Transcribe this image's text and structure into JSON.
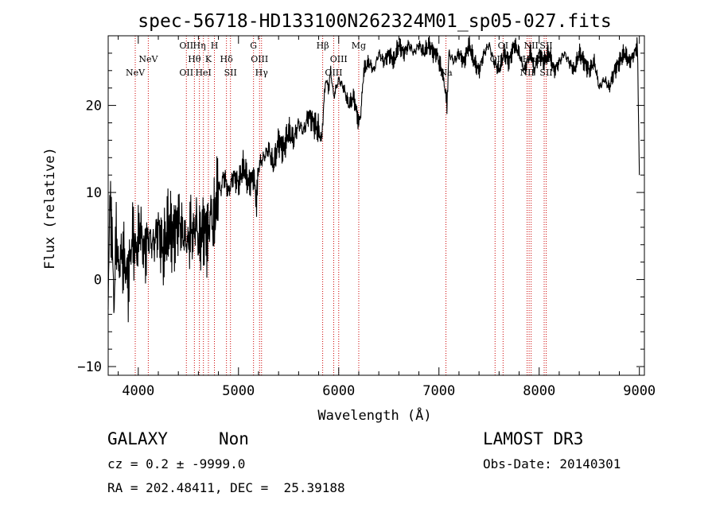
{
  "chart_data": {
    "type": "line",
    "title": "spec-56718-HD133100N262324M01_sp05-027.fits",
    "xlabel": "Wavelength (Å)",
    "ylabel": "Flux (relative)",
    "xlim": [
      3700,
      9050
    ],
    "ylim": [
      -11,
      28
    ],
    "x_ticks": [
      4000,
      5000,
      6000,
      7000,
      8000,
      9000
    ],
    "y_ticks": [
      -10,
      0,
      10,
      20
    ],
    "x_tick_labels": [
      "4000",
      "5000",
      "6000",
      "7000",
      "8000",
      "9000"
    ],
    "y_tick_labels": [
      "−10",
      "0",
      "10",
      "20"
    ],
    "series": [
      {
        "name": "flux",
        "x": [
          3700,
          3720,
          3740,
          3760,
          3780,
          3800,
          3830,
          3860,
          3900,
          3940,
          3980,
          4020,
          4060,
          4100,
          4150,
          4200,
          4250,
          4300,
          4350,
          4400,
          4450,
          4500,
          4520,
          4550,
          4580,
          4600,
          4650,
          4700,
          4720,
          4750,
          4780,
          4800,
          4820,
          4850,
          4880,
          4900,
          4950,
          5000,
          5050,
          5100,
          5150,
          5180,
          5200,
          5250,
          5300,
          5350,
          5400,
          5450,
          5500,
          5550,
          5600,
          5650,
          5700,
          5750,
          5800,
          5830,
          5850,
          5870,
          5900,
          5920,
          5950,
          6000,
          6050,
          6100,
          6150,
          6200,
          6220,
          6250,
          6300,
          6350,
          6400,
          6450,
          6500,
          6550,
          6600,
          6650,
          6700,
          6750,
          6800,
          6850,
          6900,
          6950,
          6980,
          7000,
          7030,
          7060,
          7080,
          7100,
          7150,
          7200,
          7250,
          7300,
          7350,
          7400,
          7450,
          7500,
          7550,
          7600,
          7650,
          7700,
          7750,
          7800,
          7850,
          7880,
          7920,
          7950,
          8000,
          8050,
          8100,
          8150,
          8200,
          8250,
          8300,
          8350,
          8400,
          8450,
          8500,
          8550,
          8600,
          8650,
          8700,
          8750,
          8800,
          8850,
          8900,
          8950,
          8980,
          9000
        ],
        "values": [
          -2,
          10,
          4,
          -3,
          6,
          1,
          3,
          2,
          0,
          5,
          3,
          6,
          3,
          5,
          4,
          6,
          3,
          6,
          5,
          7,
          5,
          4,
          6,
          5,
          7,
          4,
          6,
          5,
          8,
          6,
          9,
          11,
          10,
          12,
          11,
          10,
          12,
          11,
          13,
          11,
          12,
          9,
          13,
          14,
          15,
          13,
          16,
          15,
          17,
          16,
          18,
          17,
          19,
          18,
          17,
          16,
          20,
          23,
          22,
          24,
          21,
          23,
          22,
          20,
          21,
          18,
          19,
          24,
          25,
          24,
          26,
          25,
          26,
          25,
          27,
          26,
          27,
          26,
          27,
          26,
          27,
          26,
          26,
          25,
          24,
          22,
          20,
          26,
          25,
          26,
          25,
          27,
          25,
          24,
          26,
          27,
          25,
          24,
          26,
          25,
          27,
          26,
          24,
          25,
          26,
          24,
          26,
          25,
          26,
          24,
          25,
          26,
          25,
          24,
          26,
          25,
          24,
          25,
          22,
          23,
          22,
          24,
          25,
          26,
          25,
          26,
          27,
          12
        ]
      }
    ],
    "line_marks": [
      {
        "label": "NeV",
        "x": 3970
      },
      {
        "label": "NeV",
        "x": 4100
      },
      {
        "label": "OII",
        "x": 4480
      },
      {
        "label": "Hθ",
        "x": 4560
      },
      {
        "label": "Hη",
        "x": 4610
      },
      {
        "label": "HeI",
        "x": 4650
      },
      {
        "label": "K",
        "x": 4700
      },
      {
        "label": "H",
        "x": 4760
      },
      {
        "label": "Hδ",
        "x": 4880
      },
      {
        "label": "SII",
        "x": 4920
      },
      {
        "label": "G",
        "x": 5150
      },
      {
        "label": "OIII",
        "x": 5210
      },
      {
        "label": "Hγ",
        "x": 5230
      },
      {
        "label": "Hβ",
        "x": 5840
      },
      {
        "label": "OIII",
        "x": 5950
      },
      {
        "label": "OIII",
        "x": 6000
      },
      {
        "label": "Mg",
        "x": 6200
      },
      {
        "label": "Na",
        "x": 7070
      },
      {
        "label": "OI",
        "x": 7560
      },
      {
        "label": "OI",
        "x": 7640
      },
      {
        "label": "NII",
        "x": 7880
      },
      {
        "label": "Hα",
        "x": 7900
      },
      {
        "label": "NII",
        "x": 7920
      },
      {
        "label": "SII",
        "x": 8050
      },
      {
        "label": "SII",
        "x": 8070
      }
    ],
    "line_label_rows": [
      [
        {
          "t": "OII",
          "x": 4480
        },
        {
          "t": "Hη",
          "x": 4610
        },
        {
          "t": "H",
          "x": 4760
        },
        {
          "t": "G",
          "x": 5150
        },
        {
          "t": "Hβ",
          "x": 5840
        },
        {
          "t": "Mg",
          "x": 6200
        },
        {
          "t": "OI",
          "x": 7640
        },
        {
          "t": "NII",
          "x": 7920
        },
        {
          "t": "SII",
          "x": 8070
        }
      ],
      [
        {
          "t": "NeV",
          "x": 4100
        },
        {
          "t": "Hθ",
          "x": 4560
        },
        {
          "t": "K",
          "x": 4700
        },
        {
          "t": "Hδ",
          "x": 4880
        },
        {
          "t": "OIII",
          "x": 5210
        },
        {
          "t": "OIII",
          "x": 6000
        },
        {
          "t": "OI",
          "x": 7560
        },
        {
          "t": "Hα",
          "x": 7900
        },
        {
          "t": "SII",
          "x": 8050
        }
      ],
      [
        {
          "t": "NeV",
          "x": 3970
        },
        {
          "t": "OII",
          "x": 4480
        },
        {
          "t": "HeI",
          "x": 4650
        },
        {
          "t": "SII",
          "x": 4920
        },
        {
          "t": "Hγ",
          "x": 5230
        },
        {
          "t": "OIII",
          "x": 5950
        },
        {
          "t": "Na",
          "x": 7070
        },
        {
          "t": "NII",
          "x": 7880
        },
        {
          "t": "SII",
          "x": 8070
        }
      ]
    ],
    "mark_color": "#cc0000",
    "line_color": "#000000"
  },
  "footer": {
    "class_label": "GALAXY",
    "subclass_label": "Non",
    "survey_label": "LAMOST DR3",
    "cz_text": "cz = 0.2 ± -9999.0",
    "obs_date_text": "Obs-Date: 20140301",
    "coords_text": "RA = 202.48411, DEC =  25.39188"
  }
}
